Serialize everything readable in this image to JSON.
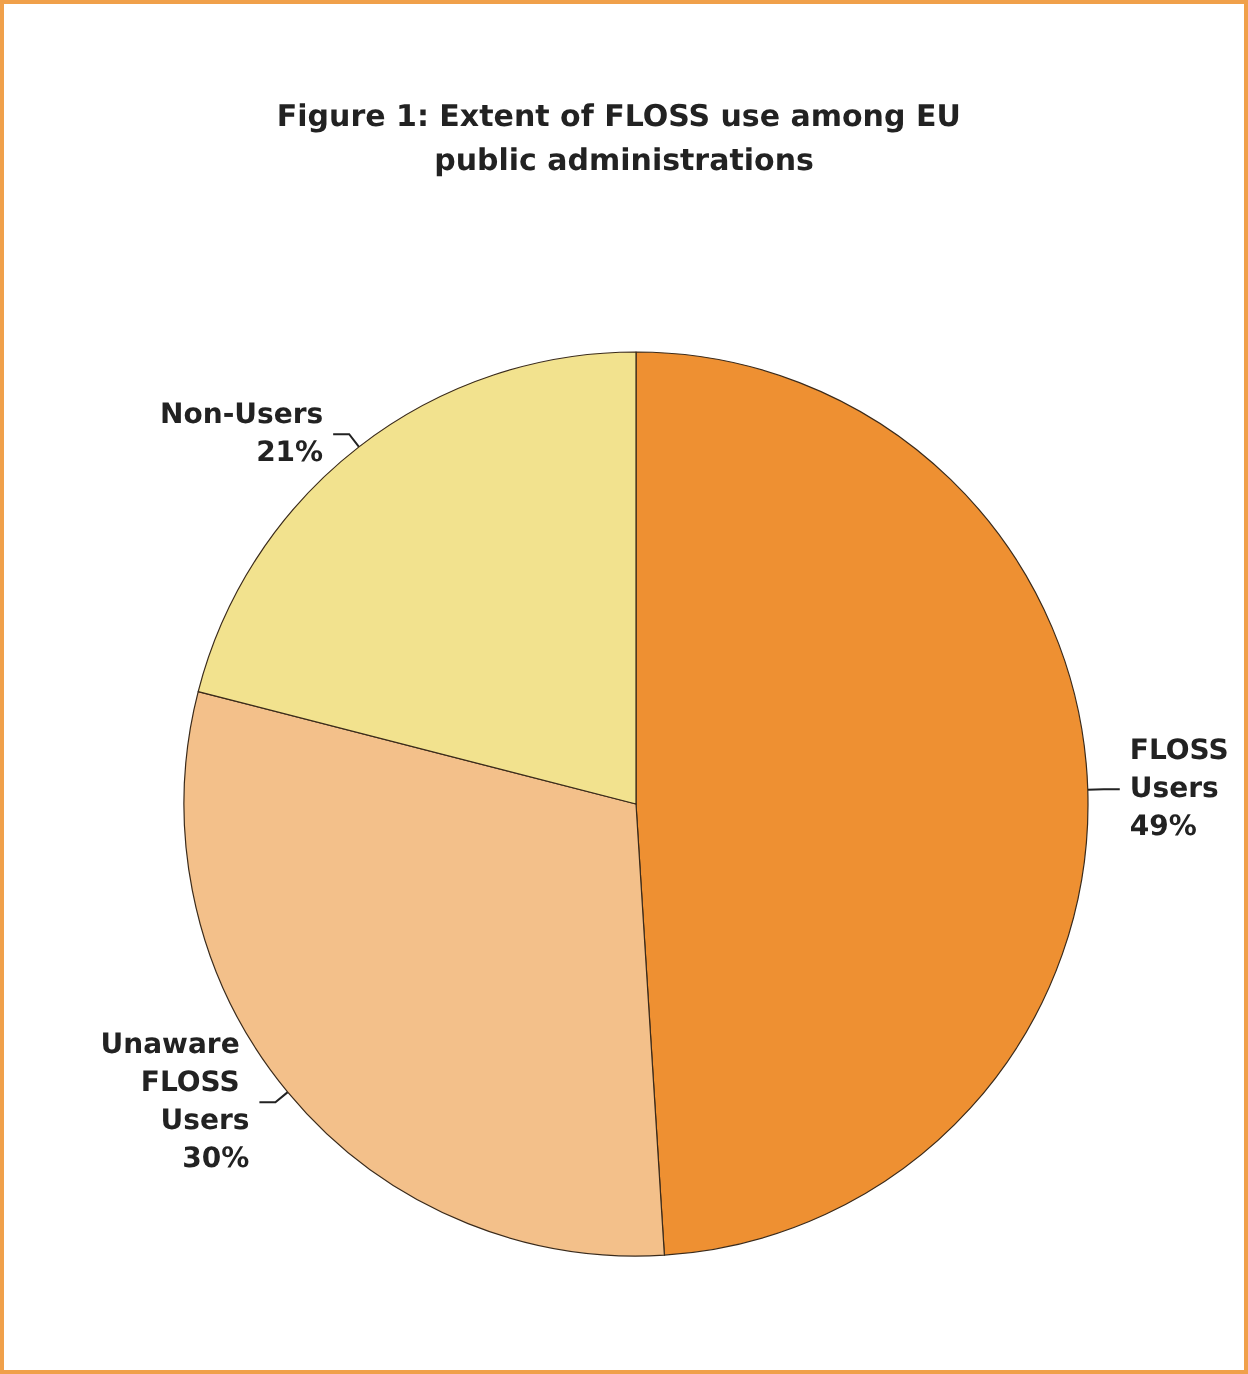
{
  "chart_data": {
    "type": "pie",
    "title": "Figure 1: Extent of FLOSS use among EU public administrations",
    "categories": [
      "FLOSS Users",
      "Unaware FLOSS Users",
      "Non-Users"
    ],
    "values": [
      49,
      30,
      21
    ],
    "colors": [
      "#ee9032",
      "#f3c08a",
      "#f2e28e"
    ],
    "value_labels": [
      "49%",
      "30%",
      "21%"
    ],
    "legend": false
  }
}
